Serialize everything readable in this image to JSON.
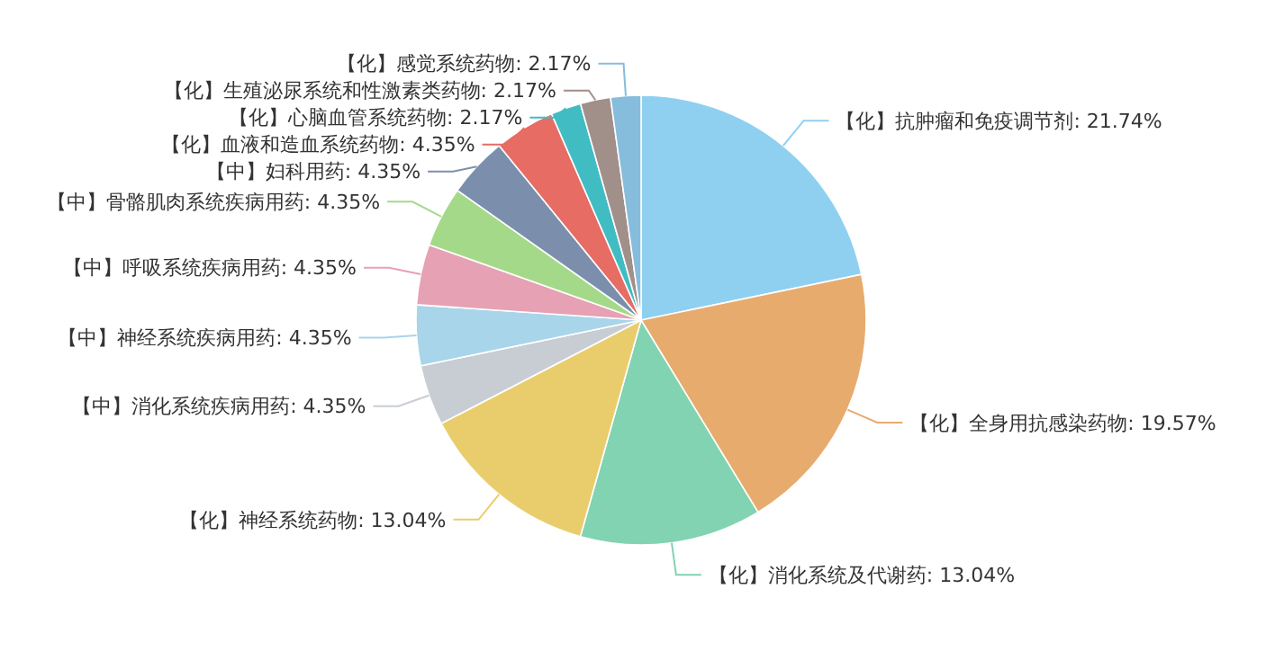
{
  "chart_data": {
    "type": "pie",
    "categories": [
      "【化】抗肿瘤和免疫调节剂",
      "【化】全身用抗感染药物",
      "【化】消化系统及代谢药",
      "【化】神经系统药物",
      "【中】消化系统疾病用药",
      "【中】神经系统疾病用药",
      "【中】呼吸系统疾病用药",
      "【中】骨骼肌肉系统疾病用药",
      "【中】妇科用药",
      "【化】血液和造血系统药物",
      "【化】心脑血管系统药物",
      "【化】生殖泌尿系统和性激素类药物",
      "【化】感觉系统药物"
    ],
    "values": [
      21.74,
      19.57,
      13.04,
      13.04,
      4.35,
      4.35,
      4.35,
      4.35,
      4.35,
      4.35,
      2.17,
      2.17,
      2.17
    ],
    "colors": [
      "#8fd0f1",
      "#e8ab6e",
      "#82d3b1",
      "#e9cd6d",
      "#c8cdd4",
      "#a8d5ea",
      "#e6a1b5",
      "#a5d98a",
      "#7b8fad",
      "#e66c64",
      "#41bcc3",
      "#a18f89",
      "#86bcdc"
    ],
    "value_labels": [
      "21.74%",
      "19.57%",
      "13.04%",
      "13.04%",
      "4.35%",
      "4.35%",
      "4.35%",
      "4.35%",
      "4.35%",
      "4.35%",
      "2.17%",
      "2.17%",
      "2.17%"
    ]
  }
}
